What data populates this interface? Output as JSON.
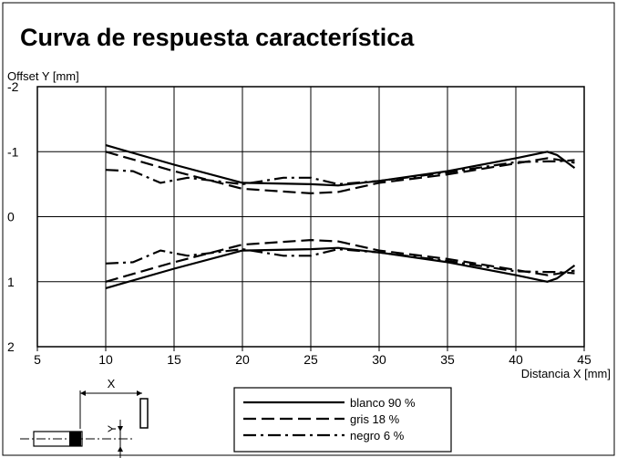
{
  "chart_data": {
    "type": "line",
    "title": "Curva de respuesta característica",
    "ylabel": "Offset Y [mm]",
    "xlabel": "Distancia X [mm]",
    "xlim": [
      5,
      45
    ],
    "ylim": [
      -2,
      2
    ],
    "y_axis_inverted": true,
    "grid": true,
    "legend_position": "bottom",
    "x_ticks": [
      5,
      10,
      15,
      20,
      25,
      30,
      35,
      40,
      45
    ],
    "y_ticks": [
      -2,
      -1,
      0,
      1,
      2
    ],
    "y_tick_labels": [
      "-2",
      "-1",
      "0",
      "1",
      "2"
    ],
    "series": [
      {
        "name": "blanco 90 %",
        "style": "solid",
        "upper": [
          [
            10,
            -1.1
          ],
          [
            15,
            -0.8
          ],
          [
            20,
            -0.52
          ],
          [
            25,
            -0.5
          ],
          [
            27,
            -0.48
          ],
          [
            30,
            -0.55
          ],
          [
            35,
            -0.7
          ],
          [
            40,
            -0.9
          ],
          [
            42.3,
            -1.0
          ],
          [
            43,
            -0.95
          ],
          [
            44.3,
            -0.75
          ]
        ],
        "lower": [
          [
            10,
            1.1
          ],
          [
            15,
            0.8
          ],
          [
            20,
            0.52
          ],
          [
            25,
            0.5
          ],
          [
            27,
            0.48
          ],
          [
            30,
            0.55
          ],
          [
            35,
            0.7
          ],
          [
            40,
            0.9
          ],
          [
            42.3,
            1.0
          ],
          [
            43,
            0.95
          ],
          [
            44.3,
            0.75
          ]
        ]
      },
      {
        "name": "gris 18 %",
        "style": "dashed",
        "upper": [
          [
            10,
            -1.0
          ],
          [
            15,
            -0.7
          ],
          [
            20,
            -0.43
          ],
          [
            25,
            -0.36
          ],
          [
            27,
            -0.38
          ],
          [
            30,
            -0.52
          ],
          [
            35,
            -0.65
          ],
          [
            40,
            -0.82
          ],
          [
            42.3,
            -0.9
          ],
          [
            43,
            -0.88
          ],
          [
            44.3,
            -0.83
          ]
        ],
        "lower": [
          [
            10,
            1.0
          ],
          [
            15,
            0.7
          ],
          [
            20,
            0.43
          ],
          [
            25,
            0.36
          ],
          [
            27,
            0.38
          ],
          [
            30,
            0.52
          ],
          [
            35,
            0.65
          ],
          [
            40,
            0.82
          ],
          [
            42.3,
            0.9
          ],
          [
            43,
            0.88
          ],
          [
            44.3,
            0.83
          ]
        ]
      },
      {
        "name": "negro 6 %",
        "style": "dashdot",
        "upper": [
          [
            10,
            -0.72
          ],
          [
            12,
            -0.7
          ],
          [
            14,
            -0.52
          ],
          [
            16,
            -0.6
          ],
          [
            20,
            -0.5
          ],
          [
            23,
            -0.6
          ],
          [
            25,
            -0.6
          ],
          [
            27,
            -0.5
          ],
          [
            30,
            -0.55
          ],
          [
            35,
            -0.68
          ],
          [
            40,
            -0.84
          ],
          [
            42.3,
            -0.85
          ],
          [
            43,
            -0.85
          ],
          [
            44.3,
            -0.87
          ]
        ],
        "lower": [
          [
            10,
            0.72
          ],
          [
            12,
            0.7
          ],
          [
            14,
            0.52
          ],
          [
            16,
            0.6
          ],
          [
            20,
            0.5
          ],
          [
            23,
            0.6
          ],
          [
            25,
            0.6
          ],
          [
            27,
            0.5
          ],
          [
            30,
            0.55
          ],
          [
            35,
            0.68
          ],
          [
            40,
            0.84
          ],
          [
            42.3,
            0.85
          ],
          [
            43,
            0.85
          ],
          [
            44.3,
            0.87
          ]
        ]
      }
    ]
  },
  "diagram": {
    "x_label": "X",
    "y_label": "Y"
  }
}
